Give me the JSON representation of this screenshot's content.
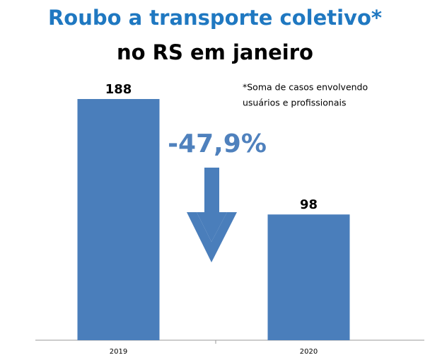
{
  "chart_data": {
    "type": "bar",
    "title": "Roubo a transporte coletivo*",
    "subtitle": "no RS em janeiro",
    "annotation": "-47,9%",
    "footnote": [
      "*Soma de casos envolvendo",
      "usuários e profissionais"
    ],
    "categories": [
      "2019",
      "2020"
    ],
    "values": [
      188,
      98
    ],
    "color": "#4a7ebb"
  }
}
